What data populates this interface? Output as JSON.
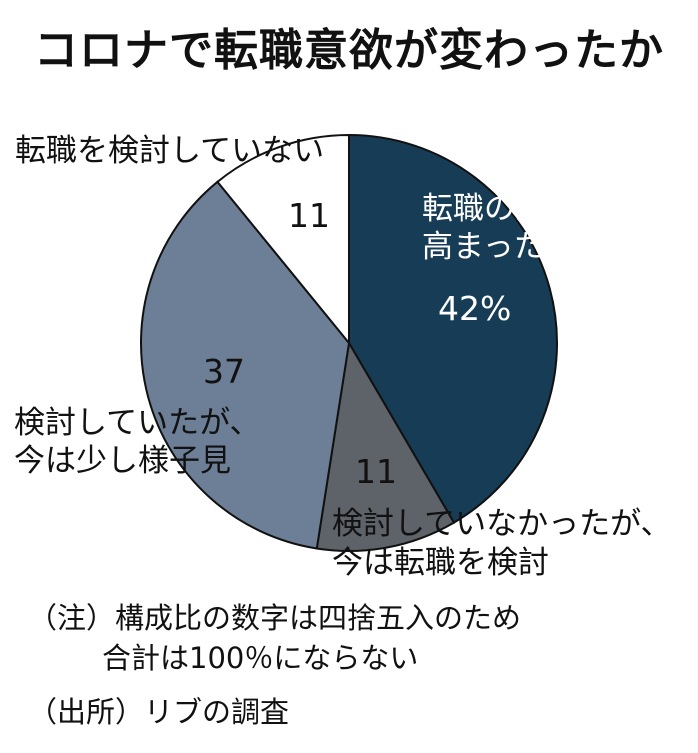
{
  "title": "コロナで転職意欲が変わったか",
  "chart_data": {
    "type": "pie",
    "slices": [
      {
        "label": "転職の意欲が高まった",
        "line1": "転職の意欲が",
        "line2": "高まった",
        "value": 42,
        "value_label": "42%",
        "color": "#173d56"
      },
      {
        "label": "検討していなかったが、今は転職を検討",
        "line1": "検討していなかったが、",
        "line2": "今は転職を検討",
        "value": 11,
        "value_label": "11",
        "color": "#5e6269"
      },
      {
        "label": "検討していたが、今は少し様子見",
        "line1": "検討していたが、",
        "line2": "今は少し様子見",
        "value": 37,
        "value_label": "37",
        "color": "#6d7f96"
      },
      {
        "label": "転職を検討していない",
        "line1": "転職を検討していない",
        "value": 11,
        "value_label": "11",
        "color": "#ffffff"
      }
    ]
  },
  "notes": {
    "note1": "（注）構成比の数字は四捨五入のため",
    "note2": "合計は100％にならない",
    "source": "（出所）リブの調査"
  }
}
